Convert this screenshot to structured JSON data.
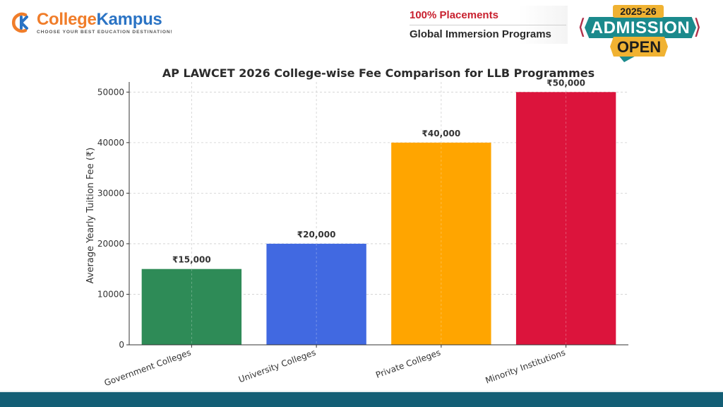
{
  "header": {
    "logo": {
      "name_part1": "College",
      "name_part2": "Kampus",
      "tagline": "CHOOSE YOUR BEST EDUCATION DESTINATION!"
    },
    "promo": {
      "line1": "100% Placements",
      "line2": "Global Immersion Programs"
    },
    "badge": {
      "year": "2025-26",
      "line1": "ADMISSION",
      "line2": "OPEN"
    }
  },
  "colors": {
    "logo_orange": "#f07d2a",
    "logo_blue": "#2a73c4",
    "promo_red": "#c8202e",
    "badge_teal": "#1b8a8c",
    "badge_gold": "#f0b232",
    "footer": "#135e75"
  },
  "chart_data": {
    "type": "bar",
    "title": "AP LAWCET 2026 College-wise Fee Comparison for LLB Programmes",
    "xlabel": "",
    "ylabel": "Average Yearly Tuition Fee (₹)",
    "categories": [
      "Government Colleges",
      "University Colleges",
      "Private Colleges",
      "Minority Institutions"
    ],
    "values": [
      15000,
      20000,
      40000,
      50000
    ],
    "value_labels": [
      "₹15,000",
      "₹20,000",
      "₹40,000",
      "₹50,000"
    ],
    "bar_colors": [
      "#2e8b57",
      "#4169e1",
      "#ffa500",
      "#dc143c"
    ],
    "ylim": [
      0,
      52000
    ],
    "yticks": [
      0,
      10000,
      20000,
      30000,
      40000,
      50000
    ],
    "ytick_labels": [
      "0",
      "10000",
      "20000",
      "30000",
      "40000",
      "50000"
    ],
    "grid": true,
    "grid_style": "dashed",
    "xtick_rotation": 20
  }
}
